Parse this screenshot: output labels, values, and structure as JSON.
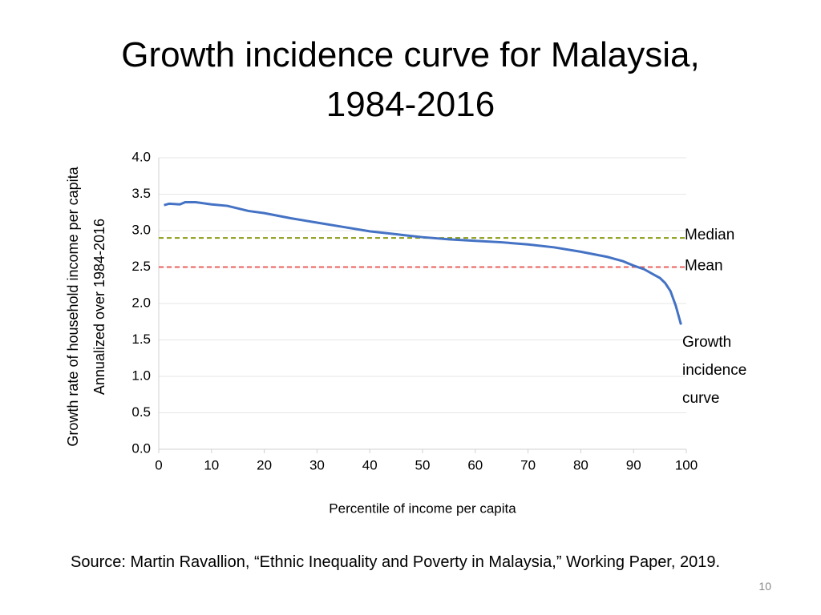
{
  "title": "Growth incidence curve for Malaysia, 1984-2016",
  "chart_data": {
    "type": "line",
    "ylabel": [
      "Growth rate of household income per capita",
      "Annualized over 1984-2016"
    ],
    "xlabel": "Percentile of income per capita",
    "x": [
      1,
      2,
      4,
      5,
      7,
      10,
      13,
      17,
      20,
      25,
      30,
      35,
      40,
      45,
      50,
      55,
      60,
      65,
      70,
      75,
      80,
      85,
      88,
      90,
      92,
      94,
      95,
      96,
      97,
      98,
      99
    ],
    "series": [
      {
        "name": "Growth incidence curve",
        "color": "#4472c4",
        "values": [
          3.35,
          3.37,
          3.36,
          3.39,
          3.39,
          3.36,
          3.34,
          3.27,
          3.24,
          3.17,
          3.11,
          3.05,
          2.99,
          2.95,
          2.91,
          2.88,
          2.86,
          2.84,
          2.81,
          2.77,
          2.71,
          2.64,
          2.58,
          2.52,
          2.47,
          2.39,
          2.35,
          2.28,
          2.17,
          1.97,
          1.71
        ]
      }
    ],
    "reference_lines": [
      {
        "name": "Median",
        "value": 2.9,
        "color": "#8a9a12"
      },
      {
        "name": "Mean",
        "value": 2.5,
        "color": "#e8605e"
      }
    ],
    "xlim": [
      0,
      100
    ],
    "xticks": [
      0,
      10,
      20,
      30,
      40,
      50,
      60,
      70,
      80,
      90,
      100
    ],
    "ylim": [
      0,
      4
    ],
    "yticks": [
      {
        "value": 0,
        "label": "0.0"
      },
      {
        "value": 0.5,
        "label": "0.5"
      },
      {
        "value": 1,
        "label": "1.0"
      },
      {
        "value": 1.5,
        "label": "1.5"
      },
      {
        "value": 2,
        "label": "2.0"
      },
      {
        "value": 2.5,
        "label": "2.5"
      },
      {
        "value": 3,
        "label": "3.0"
      },
      {
        "value": 3.5,
        "label": "3.5"
      },
      {
        "value": 4,
        "label": "4.0"
      }
    ],
    "grid": true
  },
  "source": "Source: Martin Ravallion, “Ethnic Inequality and Poverty in Malaysia,” Working Paper, 2019.",
  "page_number": "10"
}
